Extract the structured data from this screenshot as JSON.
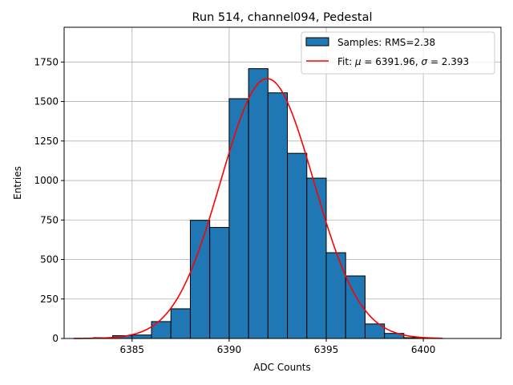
{
  "chart_data": {
    "type": "bar",
    "title": "Run 514, channel094, Pedestal",
    "xlabel": "ADC Counts",
    "ylabel": "Entries",
    "xlim": [
      6381.5,
      6404
    ],
    "ylim": [
      0,
      1970
    ],
    "xticks": [
      6385,
      6390,
      6395,
      6400
    ],
    "yticks": [
      0,
      250,
      500,
      750,
      1000,
      1250,
      1500,
      1750
    ],
    "grid": true,
    "legend_position": "top-right",
    "bin_width": 1,
    "bins": [
      {
        "left": 6383,
        "value": 5
      },
      {
        "left": 6384,
        "value": 18
      },
      {
        "left": 6385,
        "value": 22
      },
      {
        "left": 6386,
        "value": 107
      },
      {
        "left": 6387,
        "value": 188
      },
      {
        "left": 6388,
        "value": 748
      },
      {
        "left": 6389,
        "value": 703
      },
      {
        "left": 6390,
        "value": 1518
      },
      {
        "left": 6391,
        "value": 1708
      },
      {
        "left": 6392,
        "value": 1555
      },
      {
        "left": 6393,
        "value": 1172
      },
      {
        "left": 6394,
        "value": 1015
      },
      {
        "left": 6395,
        "value": 543
      },
      {
        "left": 6396,
        "value": 396
      },
      {
        "left": 6397,
        "value": 92
      },
      {
        "left": 6398,
        "value": 32
      },
      {
        "left": 6399,
        "value": 5
      }
    ],
    "fit": {
      "mu": 6391.96,
      "sigma": 2.393,
      "amplitude": 1645,
      "x_range": [
        6382,
        6401
      ]
    },
    "series": [
      {
        "name": "Samples: RMS=2.38",
        "kind": "histogram",
        "color": "#1f77b4",
        "edge": "#000000"
      },
      {
        "name": "Fit: μ = 6391.96, σ = 2.393",
        "kind": "line",
        "color": "#ff0000"
      }
    ],
    "legend": [
      {
        "label_pre": "Samples: RMS=2.38"
      },
      {
        "label_pre": "Fit: ",
        "sym1": "μ",
        "mid": " = 6391.96, ",
        "sym2": "σ",
        "post": " = 2.393"
      }
    ]
  }
}
